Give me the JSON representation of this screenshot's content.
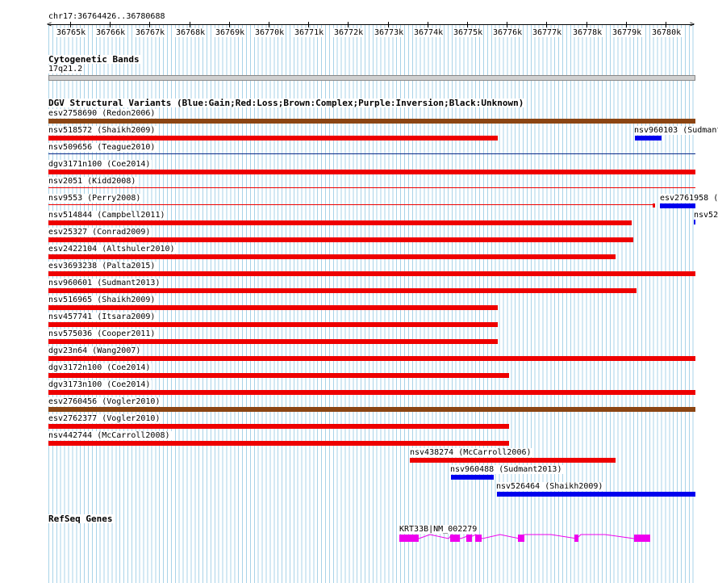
{
  "ruler": {
    "label": "chr17:36764426..36780688",
    "ticks": [
      "36765k",
      "36766k",
      "36767k",
      "36768k",
      "36769k",
      "36770k",
      "36771k",
      "36772k",
      "36773k",
      "36774k",
      "36775k",
      "36776k",
      "36777k",
      "36778k",
      "36779k",
      "36780k"
    ]
  },
  "cytoband": {
    "title": "Cytogenetic Bands",
    "band": "17q21.2"
  },
  "dgv": {
    "title": "DGV Structural Variants (Blue:Gain;Red:Loss;Brown:Complex;Purple:Inversion;Black:Unknown)",
    "colors": {
      "gain": "#0000ee",
      "loss": "#ee0000",
      "complex": "#8b4513",
      "thin_blue": "#0a2a8a"
    }
  },
  "refseq": {
    "title": "RefSeq Genes",
    "gene_label": "KRT33B|NM_002279",
    "color": "#ee00ee"
  }
}
